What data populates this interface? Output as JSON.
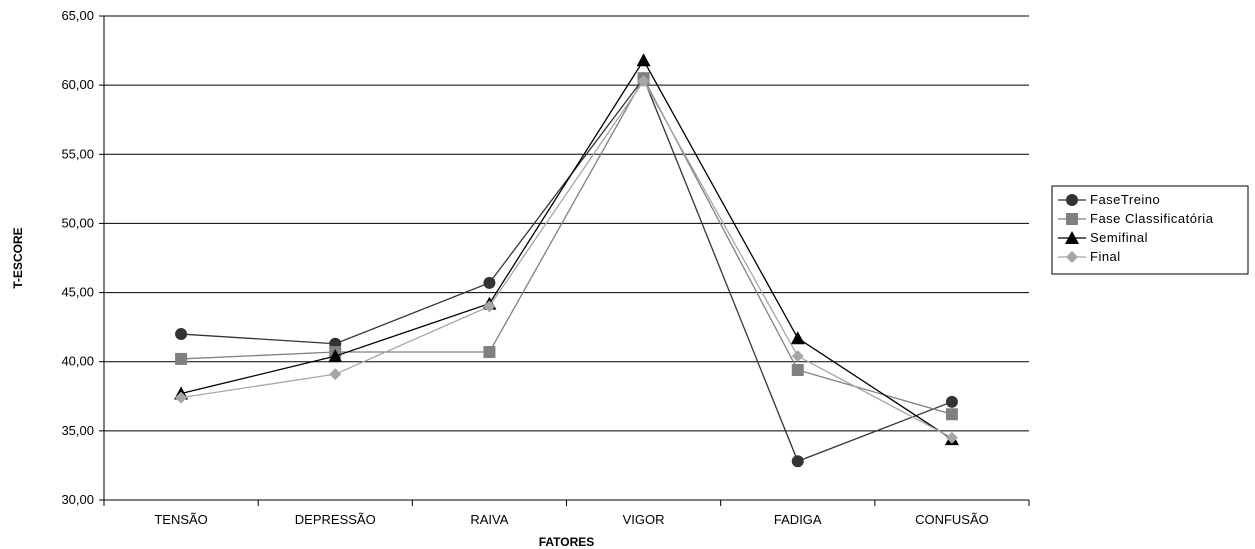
{
  "chart_data": {
    "type": "line",
    "title": "",
    "xlabel": "FATORES",
    "ylabel": "T-ESCORE",
    "ylim": [
      30,
      65
    ],
    "yticks": [
      "30,00",
      "35,00",
      "40,00",
      "45,00",
      "50,00",
      "55,00",
      "60,00",
      "65,00"
    ],
    "categories": [
      "TENSÃO",
      "DEPRESSÃO",
      "RAIVA",
      "VIGOR",
      "FADIGA",
      "CONFUSÃO"
    ],
    "grid": true,
    "legend_position": "right",
    "series": [
      {
        "name": "FaseTreino",
        "values": [
          42.0,
          41.3,
          45.7,
          60.5,
          32.8,
          37.1
        ],
        "color": "#333333",
        "marker": "circle"
      },
      {
        "name": "Fase Classificatória",
        "values": [
          40.2,
          40.7,
          40.7,
          60.5,
          39.4,
          36.2
        ],
        "color": "#808080",
        "marker": "square"
      },
      {
        "name": "Semifinal",
        "values": [
          37.7,
          40.4,
          44.2,
          61.8,
          41.7,
          34.4
        ],
        "color": "#000000",
        "marker": "triangle"
      },
      {
        "name": "Final",
        "values": [
          37.4,
          39.1,
          44.0,
          60.3,
          40.4,
          34.5
        ],
        "color": "#a6a6a6",
        "marker": "diamond"
      }
    ]
  }
}
